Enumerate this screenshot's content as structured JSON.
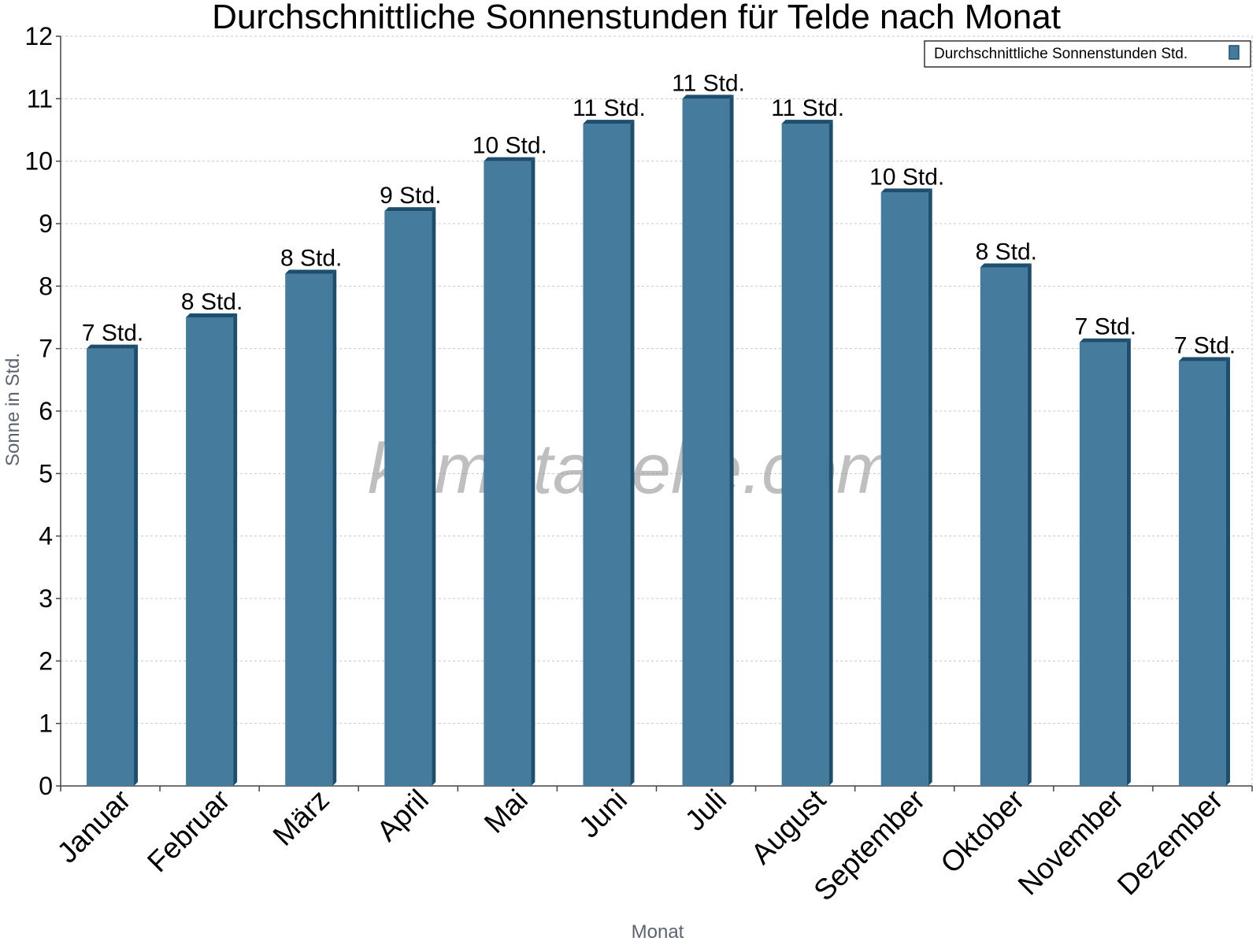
{
  "watermark": "klimatabelle.com",
  "chart_data": {
    "type": "bar",
    "title": "Durchschnittliche Sonnenstunden für Telde nach Monat",
    "xlabel": "Monat",
    "ylabel": "Sonne in Std.",
    "ylim": [
      0,
      12
    ],
    "yticks": [
      0,
      1,
      2,
      3,
      4,
      5,
      6,
      7,
      8,
      9,
      10,
      11,
      12
    ],
    "grid": true,
    "legend_position": "top-right",
    "bar_color": "#457b9d",
    "bar_side_color": "#1d4e6e",
    "categories": [
      "Januar",
      "Februar",
      "März",
      "April",
      "Mai",
      "Juni",
      "Juli",
      "August",
      "September",
      "Oktober",
      "November",
      "Dezember"
    ],
    "series": [
      {
        "name": "Durchschnittliche Sonnenstunden Std.",
        "values": [
          7.0,
          7.5,
          8.2,
          9.2,
          10.0,
          10.6,
          11.0,
          10.6,
          9.5,
          8.3,
          7.1,
          6.8
        ],
        "labels": [
          "7 Std.",
          "8 Std.",
          "8 Std.",
          "9 Std.",
          "10 Std.",
          "11 Std.",
          "11 Std.",
          "11 Std.",
          "10 Std.",
          "8 Std.",
          "7 Std.",
          "7 Std."
        ]
      }
    ]
  }
}
